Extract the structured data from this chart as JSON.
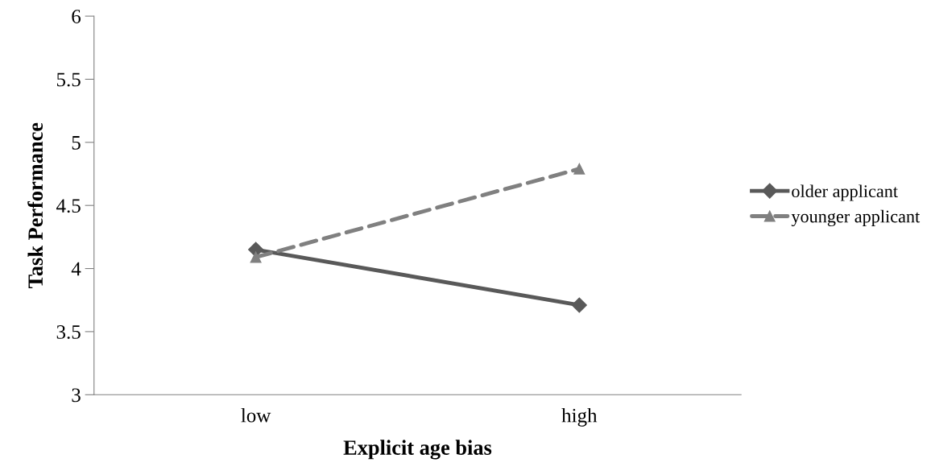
{
  "chart_data": {
    "type": "line",
    "xlabel": "Explicit age bias",
    "ylabel": "Task Performance",
    "categories": [
      "low",
      "high"
    ],
    "series": [
      {
        "name": "older applicant",
        "color": "#595959",
        "values": [
          4.15,
          3.71
        ],
        "marker": "diamond",
        "line_style": "solid"
      },
      {
        "name": "younger applicant",
        "color": "#808080",
        "values": [
          4.09,
          4.79
        ],
        "marker": "triangle",
        "line_style": "dashed"
      }
    ],
    "ylim": [
      3,
      6
    ],
    "yticks": [
      3,
      3.5,
      4,
      4.5,
      5,
      5.5,
      6
    ],
    "grid": false,
    "legend": "right"
  }
}
